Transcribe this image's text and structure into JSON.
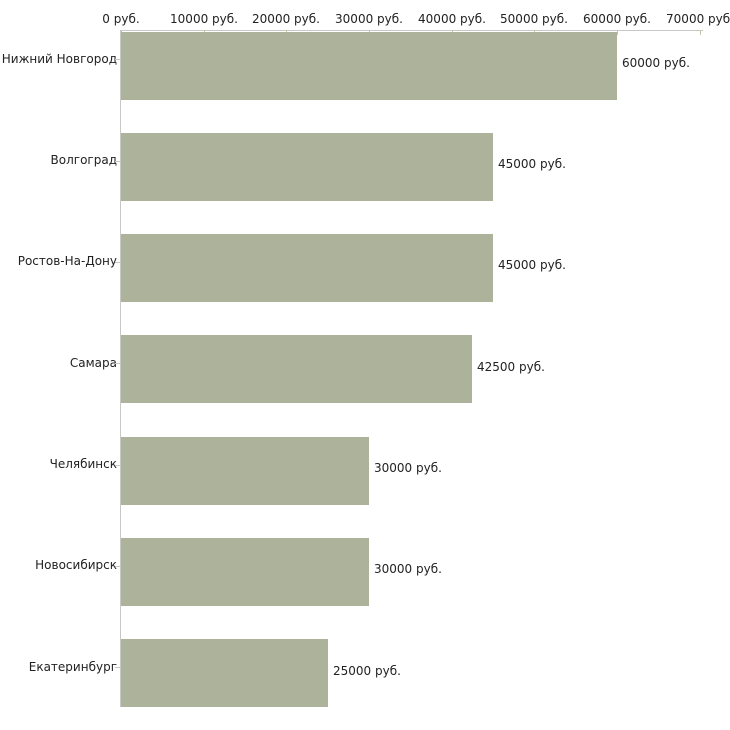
{
  "chart_data": {
    "type": "bar",
    "orientation": "horizontal",
    "title": "",
    "xlabel": "",
    "ylabel": "",
    "categories": [
      "Нижний Новгород",
      "Волгоград",
      "Ростов-На-Дону",
      "Самара",
      "Челябинск",
      "Новосибирск",
      "Екатеринбург"
    ],
    "values": [
      60000,
      45000,
      45000,
      42500,
      30000,
      30000,
      25000
    ],
    "value_labels": [
      "60000 руб.",
      "45000 руб.",
      "45000 руб.",
      "42500 руб.",
      "30000 руб.",
      "30000 руб.",
      "25000 руб."
    ],
    "x_axis": {
      "position": "top",
      "tick_values": [
        0,
        10000,
        20000,
        30000,
        40000,
        50000,
        60000,
        70000
      ],
      "tick_labels": [
        "0 руб.",
        "10000 руб.",
        "20000 руб.",
        "30000 руб.",
        "40000 руб.",
        "50000 руб.",
        "60000 руб.",
        "70000 руб."
      ]
    },
    "xlim": [
      0,
      70000
    ],
    "grid": false,
    "legend": false,
    "colors": {
      "bar": "#adb29a",
      "axis_line": "#c8c8c4",
      "x_tick_mark": "#c3c7a9",
      "category_tick_mark": "#c8c8c4",
      "text": "#222222",
      "background": "#ffffff"
    }
  }
}
